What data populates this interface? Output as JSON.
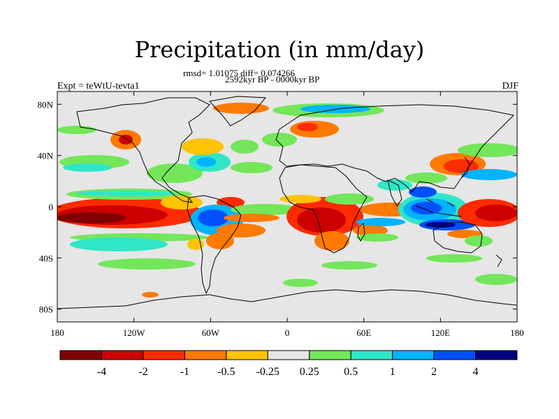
{
  "title": "Precipitation (in mm/day)",
  "stats_line": "rmsd= 1.01075 diff= 0.074266",
  "period_line": "2592kyr BP - 0000kyr BP",
  "experiment_label": "Expt = teWtU-tevta1",
  "season_label": "DJF",
  "map": {
    "lon_ticks": [
      "180",
      "120W",
      "60W",
      "0",
      "60E",
      "120E",
      "180"
    ],
    "lat_ticks": [
      "80N",
      "40N",
      "0",
      "40S",
      "80S"
    ],
    "background_color": "#e6e6e6"
  },
  "colorbar": {
    "colors": [
      "#800000",
      "#cc0000",
      "#ff2b00",
      "#ff7a00",
      "#ffc300",
      "#e6e6e6",
      "#73e65a",
      "#30e6c8",
      "#00b4ff",
      "#0050ff",
      "#000080"
    ],
    "labels": [
      "-4",
      "-2",
      "-1",
      "-0.5",
      "-0.25",
      "0.25",
      "0.5",
      "1",
      "2",
      "4"
    ]
  }
}
